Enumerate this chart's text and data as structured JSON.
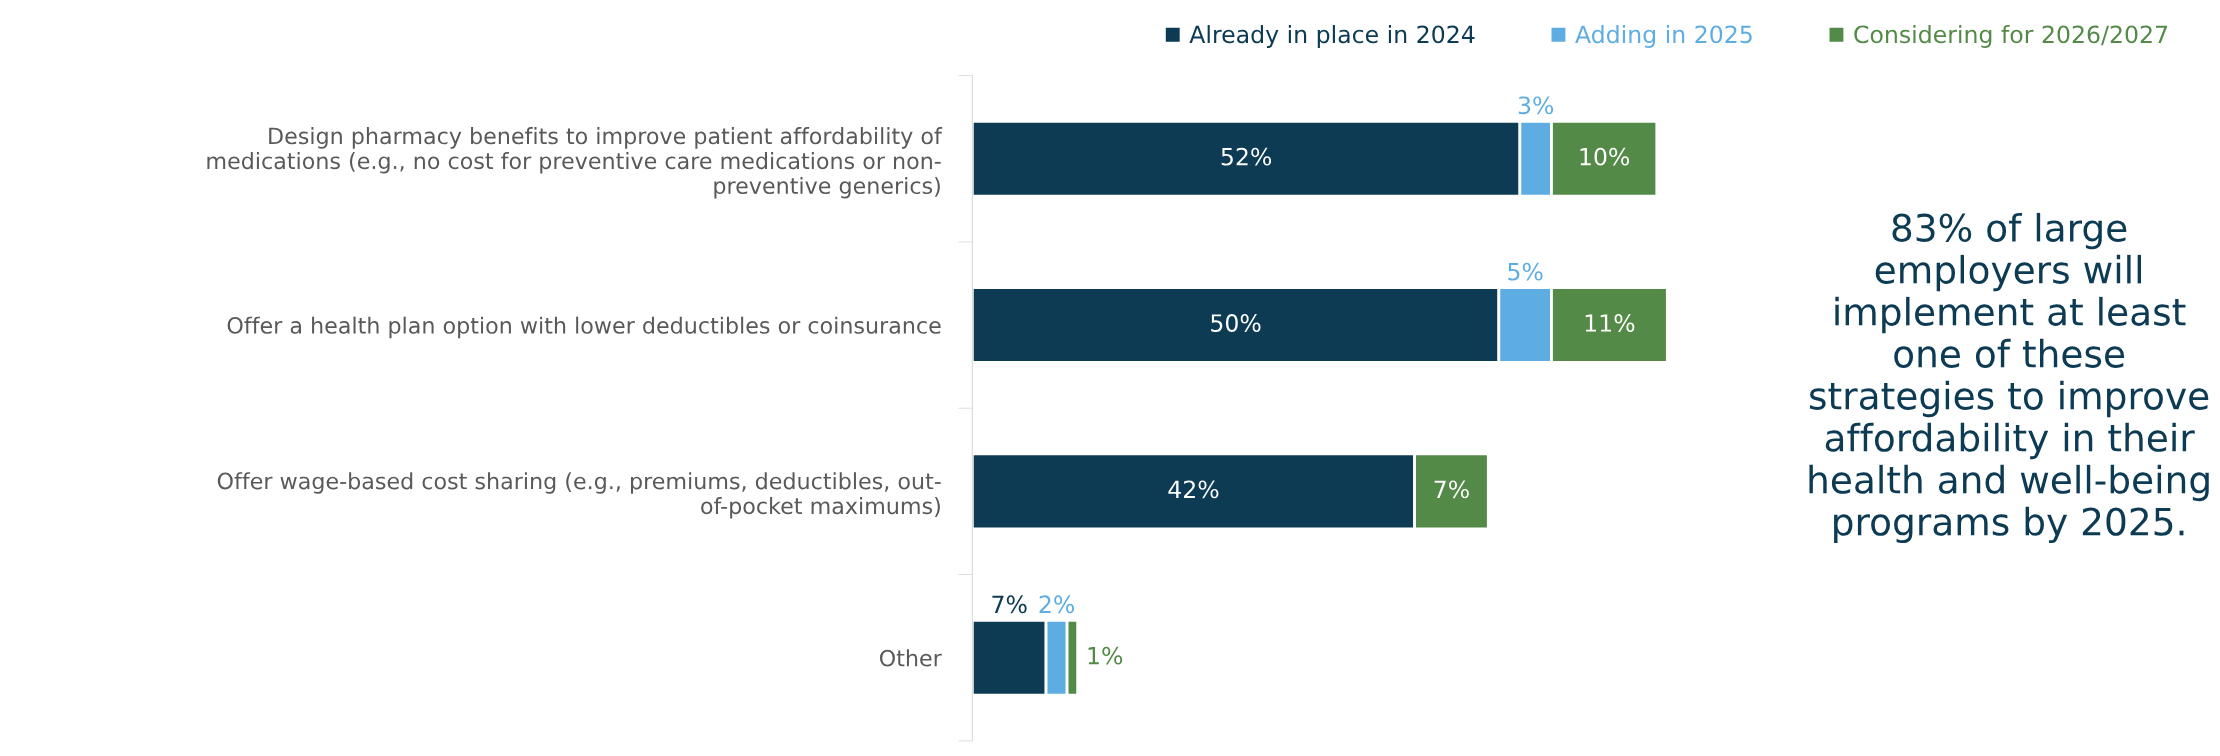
{
  "chart_data": {
    "type": "bar",
    "orientation": "horizontal",
    "stacked": true,
    "legend": "top",
    "grid": false,
    "categories": [
      "Design pharmacy benefits to improve patient affordability of\nmedications (e.g., no cost for preventive care medications or non-\npreventive generics)",
      "Offer a health plan option with lower deductibles or coinsurance",
      "Offer wage-based cost sharing (e.g., premiums, deductibles, out-\nof-pocket maximums)",
      "Other"
    ],
    "series": [
      {
        "name": "Already in place in 2024",
        "color": "#0d3b54",
        "values": [
          52,
          50,
          42,
          7
        ],
        "value_labels": [
          "52%",
          "50%",
          "42%",
          "7%"
        ]
      },
      {
        "name": "Adding in 2025",
        "color": "#5dade2",
        "values": [
          3,
          5,
          null,
          2
        ],
        "value_labels": [
          "3%",
          "5%",
          null,
          "2%"
        ]
      },
      {
        "name": "Considering for 2026/2027",
        "color": "#548a47",
        "values": [
          10,
          11,
          7,
          1
        ],
        "value_labels": [
          "10%",
          "11%",
          "7%",
          "1%"
        ]
      }
    ],
    "annotations": [
      "83% of large employers will implement at least one of these strategies to improve affordability in their health and well-being programs by 2025."
    ]
  }
}
